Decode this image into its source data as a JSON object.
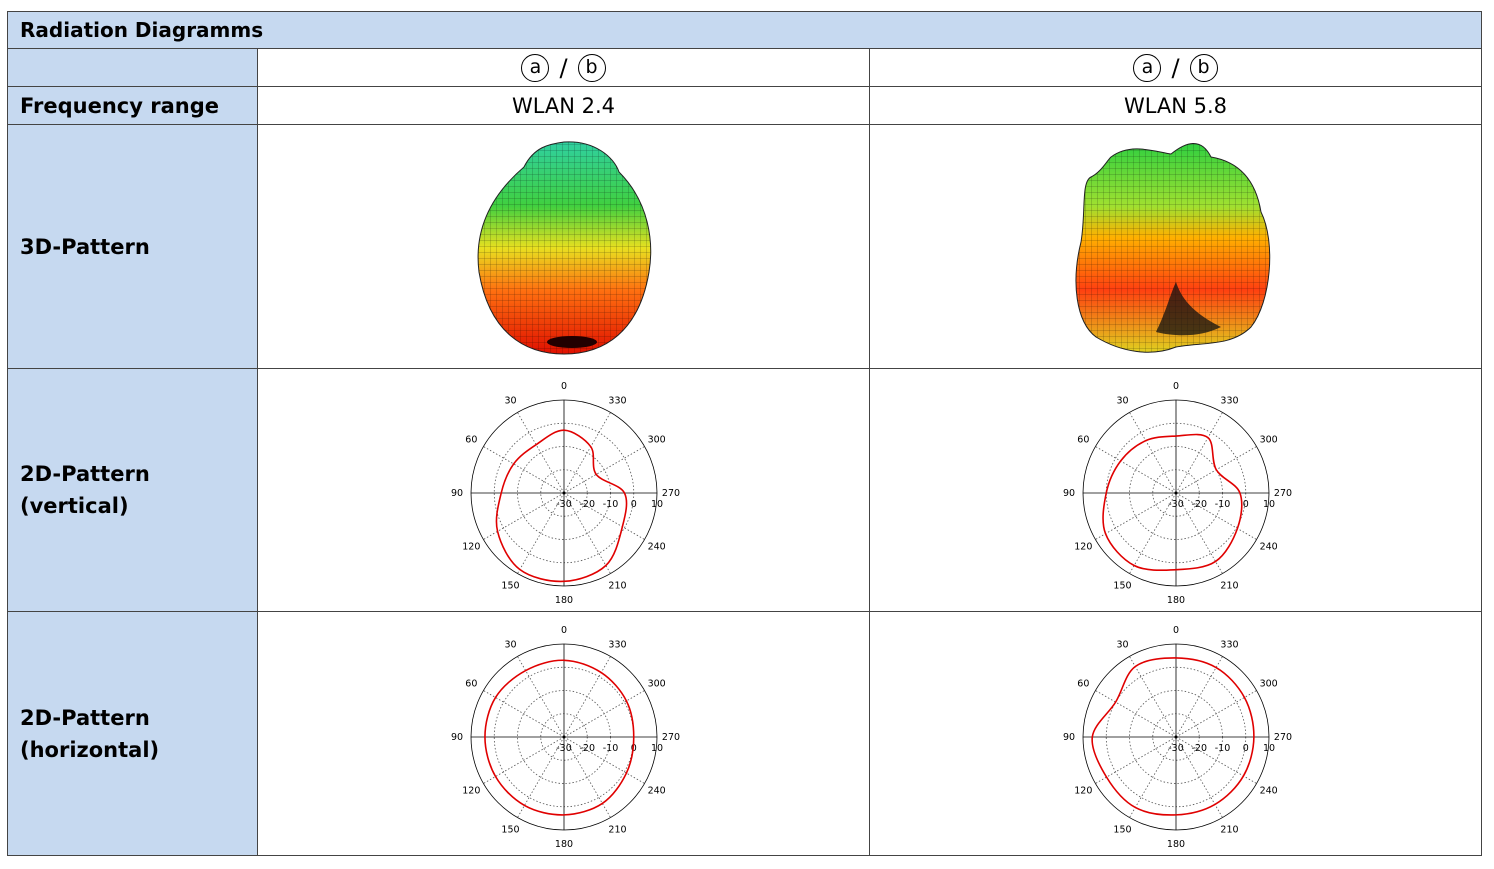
{
  "table": {
    "title": "Radiation Diagramms",
    "row_labels": [
      "Frequency range",
      "3D-Pattern",
      "2D-Pattern\n(vertical)",
      "2D-Pattern\n(horizontal)"
    ],
    "columns": [
      {
        "variant": [
          "a",
          "/",
          "b"
        ],
        "frequency": "WLAN 2.4"
      },
      {
        "variant": [
          "a",
          "/",
          "b"
        ],
        "frequency": "WLAN 5.8"
      }
    ]
  },
  "chart_data": [
    {
      "type": "polar",
      "theta": [
        0,
        30,
        60,
        90,
        120,
        150,
        180,
        210,
        240,
        270,
        300,
        330
      ],
      "values": [
        -3,
        -6,
        -5,
        -3,
        3,
        8,
        8,
        6,
        -1,
        -4,
        -14,
        -7
      ],
      "color": "#e00000",
      "rlim": [
        -30,
        10
      ],
      "rticks": [
        -30,
        -20,
        -10,
        0,
        10
      ]
    },
    {
      "type": "polar",
      "theta": [
        0,
        30,
        60,
        90,
        120,
        150,
        180,
        210,
        240,
        270,
        300,
        330
      ],
      "values": [
        -5.5,
        -4,
        -2.5,
        0,
        5,
        6,
        3,
        4,
        0.5,
        -2.5,
        -10,
        -2.5
      ],
      "color": "#e00000",
      "rlim": [
        -30,
        10
      ],
      "rticks": [
        -30,
        -20,
        -10,
        0,
        10
      ]
    },
    {
      "type": "polar",
      "theta": [
        0,
        30,
        60,
        90,
        120,
        150,
        180,
        210,
        240,
        270,
        300,
        330
      ],
      "values": [
        3,
        3,
        4,
        4,
        4,
        4,
        3.5,
        3,
        1,
        0,
        1,
        2
      ],
      "color": "#e00000",
      "rlim": [
        -30,
        10
      ],
      "rticks": [
        -30,
        -20,
        -10,
        0,
        10
      ]
    },
    {
      "type": "polar",
      "theta": [
        0,
        30,
        60,
        90,
        120,
        150,
        180,
        210,
        240,
        270,
        300,
        330
      ],
      "values": [
        4,
        5,
        0,
        6,
        4.5,
        5,
        3.5,
        3.5,
        3.5,
        3.5,
        4,
        4.5
      ],
      "color": "#e00000",
      "rlim": [
        -30,
        10
      ],
      "rticks": [
        -30,
        -20,
        -10,
        0,
        10
      ]
    }
  ]
}
